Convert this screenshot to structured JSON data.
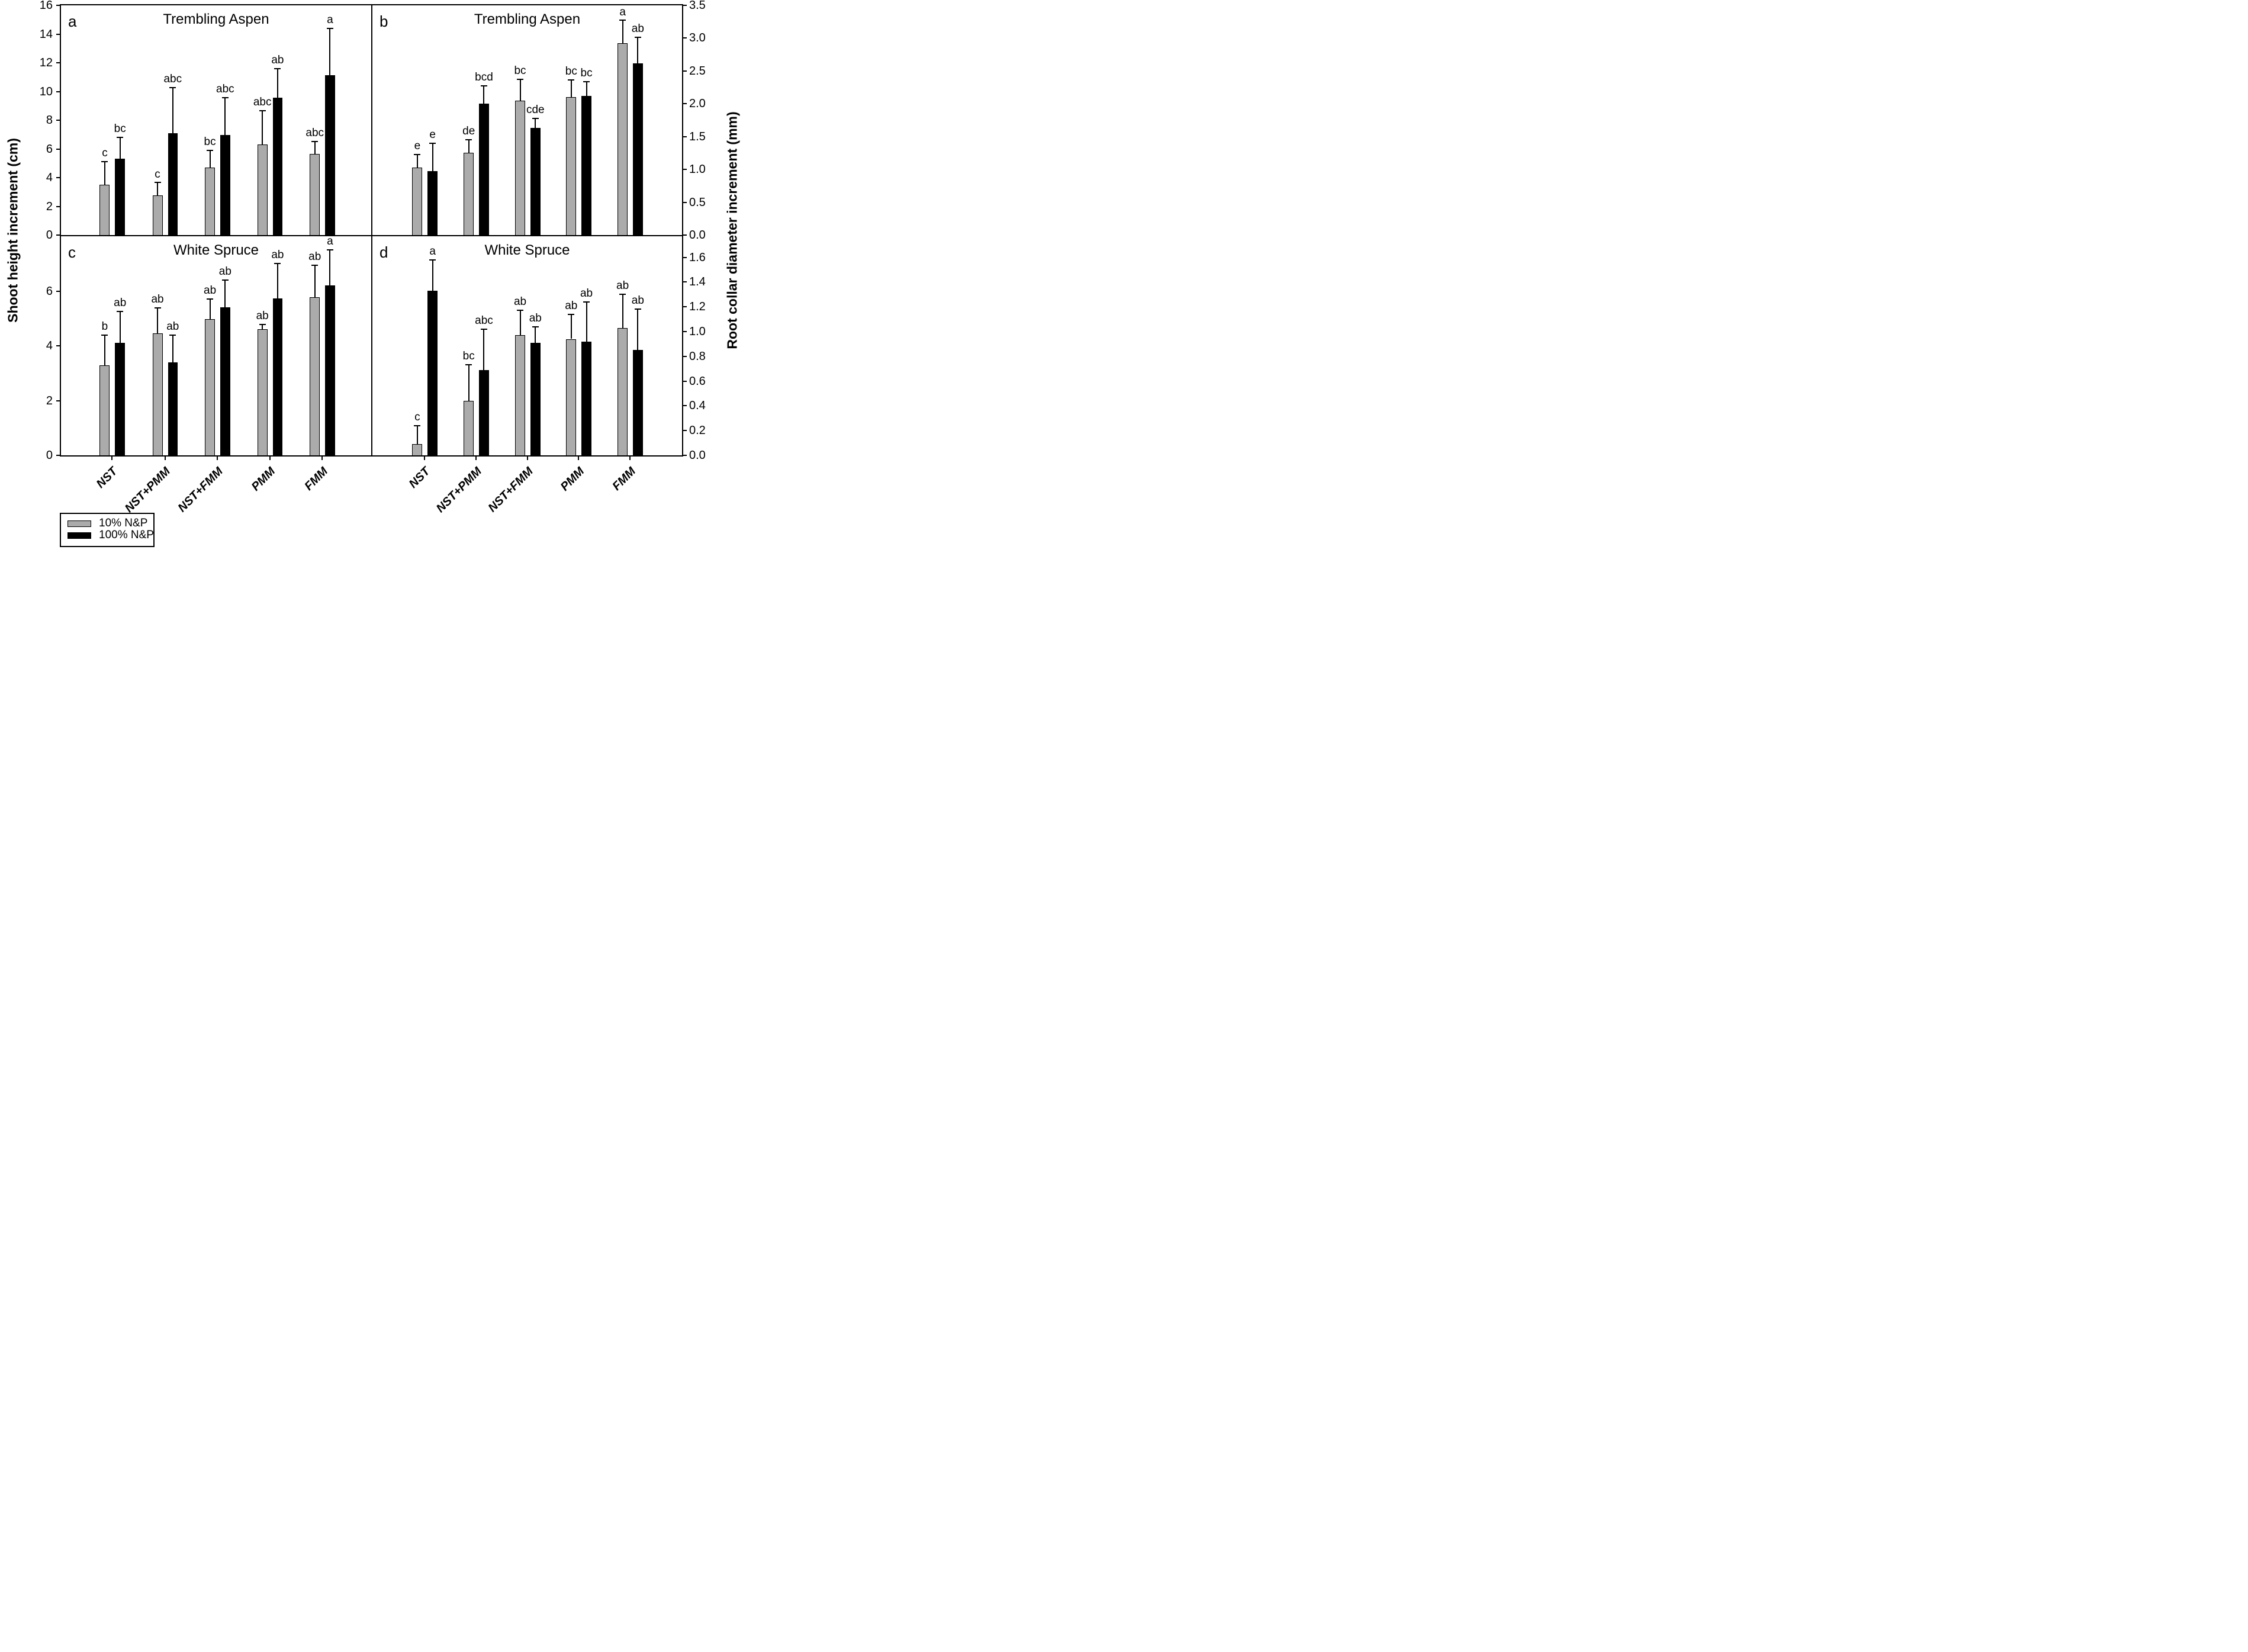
{
  "figure": {
    "left_axis_title": "Shoot height increment (cm)",
    "right_axis_title": "Root collar diameter increment (mm)",
    "background_color": "#ffffff",
    "bar_outline_color": "#000000"
  },
  "legend": {
    "position": "bottom-left",
    "items": [
      {
        "label": "10% N&P",
        "color": "#ababab"
      },
      {
        "label": "100% N&P",
        "color": "#000000"
      }
    ]
  },
  "chart_data": [
    {
      "id": "a",
      "type": "bar",
      "panel_letter": "a",
      "title": "Trembling Aspen",
      "axis_side": "left",
      "ylabel": "Shoot height increment (cm)",
      "ylim": [
        0,
        16
      ],
      "ytick_values": [
        0,
        2,
        4,
        6,
        8,
        10,
        12,
        14,
        16
      ],
      "ytick_labels": [
        "0",
        "2",
        "4",
        "6",
        "8",
        "10",
        "12",
        "14",
        "16"
      ],
      "categories": [
        "NST",
        "NST+PMM",
        "NST+FMM",
        "PMM",
        "FMM"
      ],
      "show_category_labels": false,
      "series": [
        {
          "name": "10% N&P",
          "color": "#ababab",
          "values": [
            3.5,
            2.75,
            4.7,
            6.3,
            5.65
          ],
          "errors": [
            1.6,
            0.9,
            1.2,
            2.35,
            0.85
          ],
          "sig_letters": [
            "c",
            "c",
            "bc",
            "abc",
            "abc"
          ]
        },
        {
          "name": "100% N&P",
          "color": "#000000",
          "values": [
            5.3,
            7.1,
            6.95,
            9.55,
            11.15
          ],
          "errors": [
            1.5,
            3.15,
            2.6,
            2.05,
            3.25
          ],
          "sig_letters": [
            "bc",
            "abc",
            "abc",
            "ab",
            "a"
          ]
        }
      ]
    },
    {
      "id": "b",
      "type": "bar",
      "panel_letter": "b",
      "title": "Trembling Aspen",
      "axis_side": "right",
      "ylabel": "Root collar diameter increment (mm)",
      "ylim": [
        0,
        3.5
      ],
      "ytick_values": [
        0,
        0.5,
        1.0,
        1.5,
        2.0,
        2.5,
        3.0,
        3.5
      ],
      "ytick_labels": [
        "0.0",
        "0.5",
        "1.0",
        "1.5",
        "2.0",
        "2.5",
        "3.0",
        "3.5"
      ],
      "categories": [
        "NST",
        "NST+PMM",
        "NST+FMM",
        "PMM",
        "FMM"
      ],
      "show_category_labels": false,
      "series": [
        {
          "name": "10% N&P",
          "color": "#ababab",
          "values": [
            1.03,
            1.25,
            2.05,
            2.1,
            2.92
          ],
          "errors": [
            0.2,
            0.2,
            0.32,
            0.26,
            0.35
          ],
          "sig_letters": [
            "e",
            "de",
            "bc",
            "bc",
            "a"
          ]
        },
        {
          "name": "100% N&P",
          "color": "#000000",
          "values": [
            0.97,
            2.0,
            1.63,
            2.12,
            2.62
          ],
          "errors": [
            0.43,
            0.27,
            0.15,
            0.22,
            0.39
          ],
          "sig_letters": [
            "e",
            "bcd",
            "cde",
            "bc",
            "ab"
          ]
        }
      ]
    },
    {
      "id": "c",
      "type": "bar",
      "panel_letter": "c",
      "title": "White Spruce",
      "axis_side": "left",
      "ylabel": "Shoot height increment (cm)",
      "ylim": [
        0,
        8
      ],
      "ytick_values": [
        0,
        2,
        4,
        6
      ],
      "ytick_labels": [
        "0",
        "2",
        "4",
        "6"
      ],
      "categories": [
        "NST",
        "NST+PMM",
        "NST+FMM",
        "PMM",
        "FMM"
      ],
      "show_category_labels": true,
      "series": [
        {
          "name": "10% N&P",
          "color": "#ababab",
          "values": [
            3.28,
            4.45,
            4.98,
            4.6,
            5.78
          ],
          "errors": [
            1.12,
            0.93,
            0.73,
            0.18,
            1.17
          ],
          "sig_letters": [
            "b",
            "ab",
            "ab",
            "ab",
            "ab"
          ]
        },
        {
          "name": "100% N&P",
          "color": "#000000",
          "values": [
            4.1,
            3.4,
            5.4,
            5.72,
            6.2
          ],
          "errors": [
            1.15,
            0.98,
            1.0,
            1.28,
            1.3
          ],
          "sig_letters": [
            "ab",
            "ab",
            "ab",
            "ab",
            "a"
          ]
        }
      ]
    },
    {
      "id": "d",
      "type": "bar",
      "panel_letter": "d",
      "title": "White Spruce",
      "axis_side": "right",
      "ylabel": "Root collar diameter increment (mm)",
      "ylim": [
        0,
        1.77
      ],
      "ytick_values": [
        0,
        0.2,
        0.4,
        0.6,
        0.8,
        1.0,
        1.2,
        1.4,
        1.6
      ],
      "ytick_labels": [
        "0.0",
        "0.2",
        "0.4",
        "0.6",
        "0.8",
        "1.0",
        "1.2",
        "1.4",
        "1.6"
      ],
      "categories": [
        "NST",
        "NST+PMM",
        "NST+FMM",
        "PMM",
        "FMM"
      ],
      "show_category_labels": true,
      "series": [
        {
          "name": "10% N&P",
          "color": "#ababab",
          "values": [
            0.09,
            0.44,
            0.97,
            0.94,
            1.03
          ],
          "errors": [
            0.15,
            0.29,
            0.2,
            0.2,
            0.27
          ],
          "sig_letters": [
            "c",
            "bc",
            "ab",
            "ab",
            "ab"
          ]
        },
        {
          "name": "100% N&P",
          "color": "#000000",
          "values": [
            1.33,
            0.69,
            0.91,
            0.92,
            0.85
          ],
          "errors": [
            0.25,
            0.33,
            0.13,
            0.32,
            0.33
          ],
          "sig_letters": [
            "a",
            "abc",
            "ab",
            "ab",
            "ab"
          ]
        }
      ]
    }
  ]
}
